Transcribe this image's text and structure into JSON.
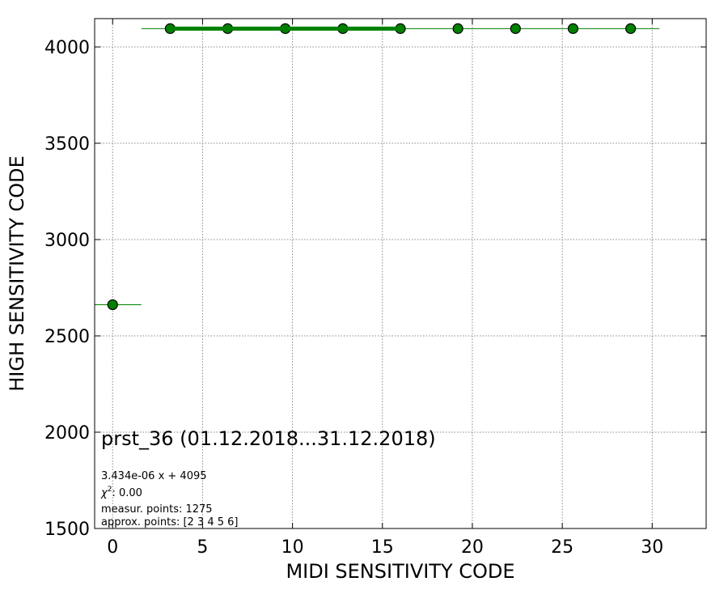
{
  "chart_data": {
    "type": "scatter",
    "xlabel": "MIDI SENSITIVITY CODE",
    "ylabel": "HIGH SENSITIVITY CODE",
    "xlim": [
      -1,
      33
    ],
    "ylim": [
      1500,
      4147
    ],
    "xticks": [
      0,
      5,
      10,
      15,
      20,
      25,
      30
    ],
    "yticks": [
      1500,
      2000,
      2500,
      3000,
      3500,
      4000
    ],
    "grid": true,
    "series": [
      {
        "name": "measurements",
        "color": "#008000",
        "x": [
          0,
          3.2,
          6.4,
          9.6,
          12.8,
          16,
          19.2,
          22.4,
          25.6,
          28.8
        ],
        "values": [
          2662,
          4095,
          4095,
          4095,
          4095,
          4095,
          4095,
          4095,
          4095,
          4095
        ],
        "xerr": [
          1.6,
          1.6,
          1.6,
          1.6,
          1.6,
          1.6,
          1.6,
          1.6,
          1.6,
          1.6
        ]
      },
      {
        "name": "fit",
        "color": "#008000",
        "x": [
          3.2,
          16
        ],
        "values": [
          4095,
          4095
        ]
      }
    ],
    "annotations": {
      "title": "prst_36 (01.12.2018...31.12.2018)",
      "fit": "3.434e-06 x + 4095",
      "chi2": {
        "symbol": "χ",
        "sup": "2",
        "text": ": 0.00"
      },
      "measured": "measur. points: 1275",
      "approx": "approx. points: [2 3 4 5 6]"
    }
  }
}
